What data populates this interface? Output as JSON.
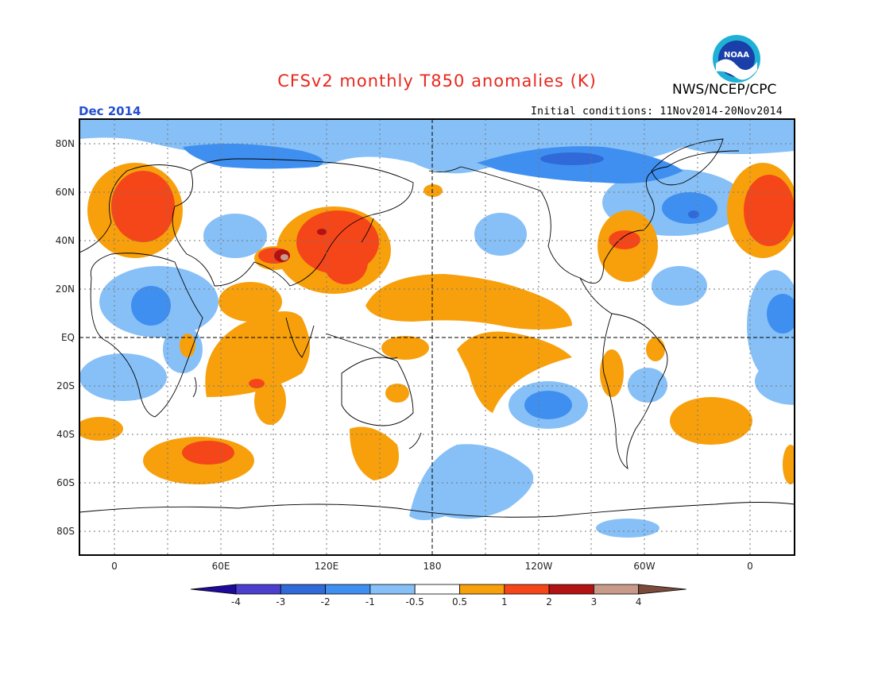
{
  "title": "CFSv2 monthly T850 anomalies (K)",
  "organization": "NWS/NCEP/CPC",
  "logo_text": "NOAA",
  "valid_month": "Dec 2014",
  "initial_conditions": "Initial conditions: 11Nov2014-20Nov2014",
  "lat_labels": [
    "80N",
    "60N",
    "40N",
    "20N",
    "EQ",
    "20S",
    "40S",
    "60S",
    "80S"
  ],
  "lon_labels": [
    "0",
    "60E",
    "120E",
    "180",
    "120W",
    "60W",
    "0"
  ],
  "colorbar": {
    "labels": [
      "-4",
      "-3",
      "-2",
      "-1",
      "-0.5",
      "0.5",
      "1",
      "2",
      "3",
      "4"
    ],
    "colors": [
      "#1e0a9a",
      "#4b3fd0",
      "#2f6ad8",
      "#3f8ff0",
      "#86c0f7",
      "#ffffff",
      "#f7a00c",
      "#f5461a",
      "#b21212",
      "#c89a8a",
      "#7a4a3a"
    ]
  }
}
